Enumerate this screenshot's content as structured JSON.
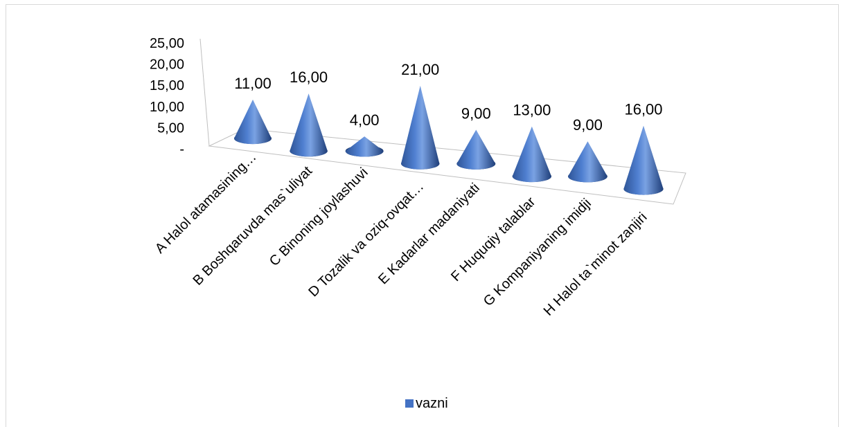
{
  "chart_data": {
    "type": "bar",
    "shape": "3d-cone",
    "title": "",
    "xlabel": "",
    "ylabel": "",
    "ylim": [
      0,
      25
    ],
    "y_ticks": [
      "-",
      "5,00",
      "10,00",
      "15,00",
      "20,00",
      "25,00"
    ],
    "categories": [
      "A  Halol atamasining…",
      "B  Boshqaruvda mas`uliyat",
      "C  Binoning joylashuvi",
      "D  Tozalik va oziq-ovqat…",
      "E  Kadarlar madaniyati",
      "F  Huquqiy talablar",
      "G  Kompaniyaning imidji",
      "H  Halol ta`minot zanjiri"
    ],
    "series": [
      {
        "name": "vazni",
        "color": "#4472c4",
        "values": [
          11,
          16,
          4,
          21,
          9,
          13,
          9,
          16
        ],
        "data_labels": [
          "11,00",
          "16,00",
          "4,00",
          "21,00",
          "9,00",
          "13,00",
          "9,00",
          "16,00"
        ]
      }
    ],
    "legend_position": "bottom",
    "grid": false
  }
}
